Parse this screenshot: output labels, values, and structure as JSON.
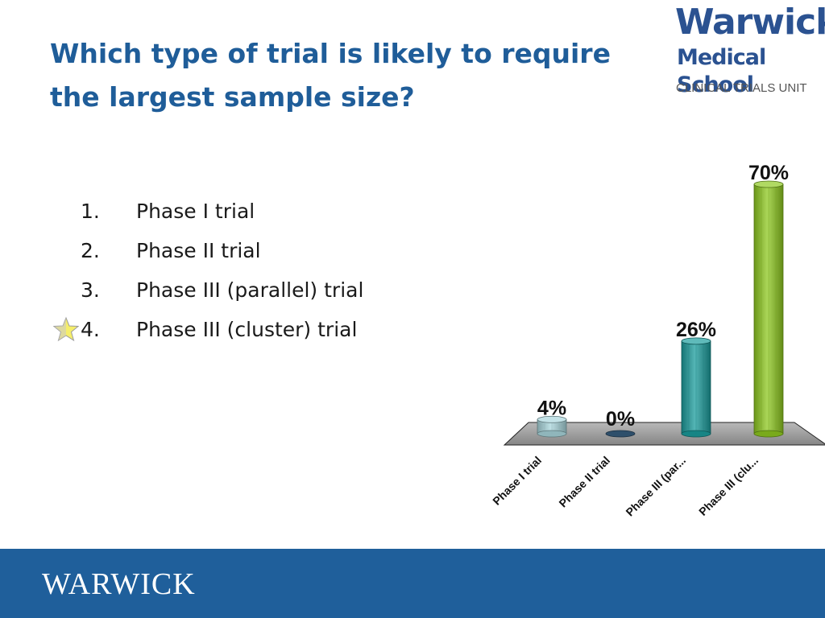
{
  "slide": {
    "title": "Which type of trial is likely to require the largest sample size?"
  },
  "logo": {
    "line1": "Warwick",
    "line2": "Medical School",
    "line3": "CLINICAL TRIALS UNIT"
  },
  "options": [
    {
      "number": "1.",
      "label": "Phase I trial"
    },
    {
      "number": "2.",
      "label": "Phase II trial"
    },
    {
      "number": "3.",
      "label": "Phase III (parallel) trial"
    },
    {
      "number": "4.",
      "label": "Phase III (cluster) trial"
    }
  ],
  "correct_marker_icon": "star-icon",
  "footer": {
    "logo_text": "WARWICK"
  },
  "chart_data": {
    "type": "bar",
    "categories": [
      "Phase I trial",
      "Phase II trial",
      "Phase III (par...",
      "Phase III (clu..."
    ],
    "values": [
      4,
      0,
      26,
      70
    ],
    "labels": [
      "4%",
      "0%",
      "26%",
      "70%"
    ],
    "unit": "%",
    "ylim": [
      0,
      70
    ],
    "grid": false,
    "legend": "none",
    "colors": [
      "#a9d6dc",
      "#2e4f6b",
      "#1b9c9c",
      "#8ec820"
    ],
    "floor_color": "#8a8a8a"
  }
}
